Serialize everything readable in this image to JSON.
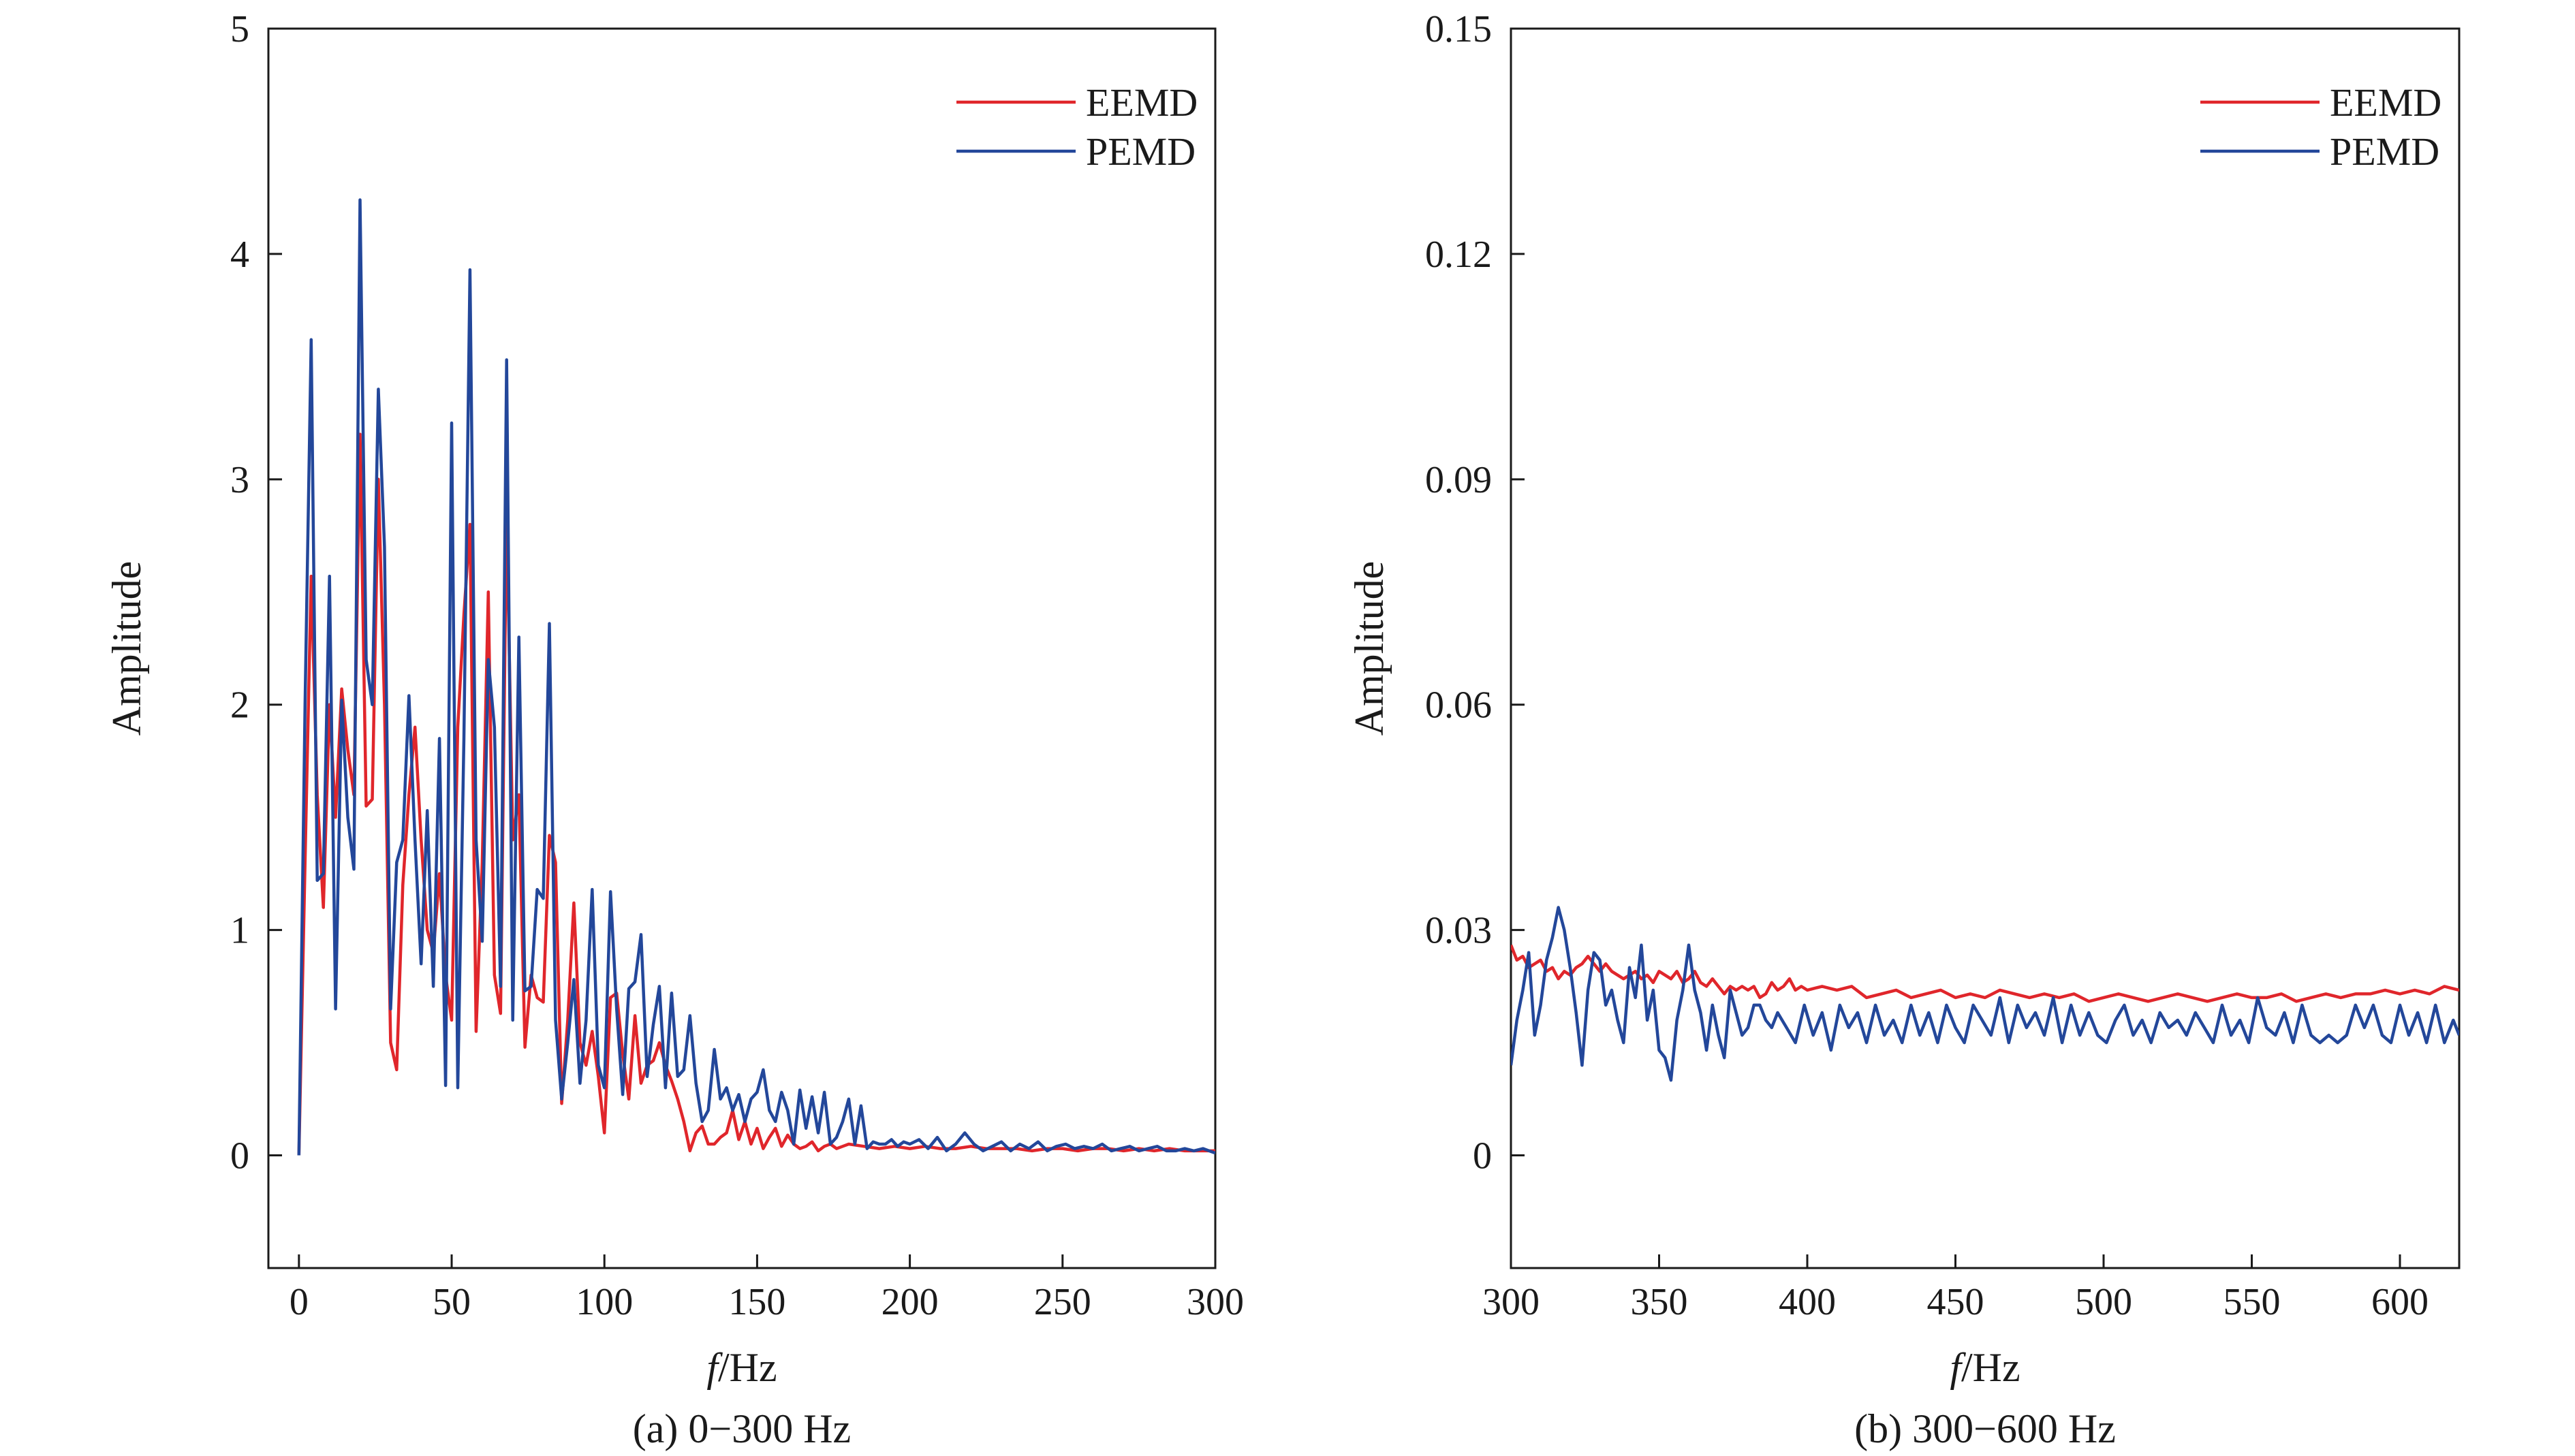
{
  "chart_data": [
    {
      "type": "line",
      "caption": "(a) 0−300 Hz",
      "xlabel_italic": "f",
      "xlabel_rest": "/Hz",
      "ylabel": "Amplitude",
      "xlim": [
        -10,
        300
      ],
      "ylim": [
        -0.5,
        5
      ],
      "xticks": [
        0,
        50,
        100,
        150,
        200,
        250,
        300
      ],
      "xtick_labels": [
        "0",
        "50",
        "100",
        "150",
        "200",
        "250",
        "300"
      ],
      "yticks": [
        0,
        1,
        2,
        3,
        4,
        5
      ],
      "ytick_labels": [
        "0",
        "1",
        "2",
        "3",
        "4",
        "5"
      ],
      "grid": false,
      "legend_position": "top-right",
      "series": [
        {
          "name": "EEMD",
          "color": "#e0262b",
          "x": [
            0,
            2,
            4,
            6,
            8,
            10,
            12,
            14,
            16,
            18,
            20,
            22,
            24,
            26,
            28,
            30,
            32,
            34,
            36,
            38,
            40,
            42,
            44,
            46,
            48,
            50,
            52,
            54,
            56,
            58,
            60,
            62,
            64,
            66,
            68,
            70,
            72,
            74,
            76,
            78,
            80,
            82,
            84,
            86,
            88,
            90,
            92,
            94,
            96,
            98,
            100,
            102,
            104,
            106,
            108,
            110,
            112,
            114,
            116,
            118,
            120,
            122,
            124,
            126,
            128,
            130,
            132,
            134,
            136,
            138,
            140,
            142,
            144,
            146,
            148,
            150,
            152,
            154,
            156,
            158,
            160,
            162,
            164,
            166,
            168,
            170,
            172,
            174,
            176,
            178,
            180,
            185,
            190,
            195,
            200,
            205,
            210,
            215,
            220,
            225,
            230,
            235,
            240,
            245,
            250,
            255,
            260,
            265,
            270,
            275,
            280,
            285,
            290,
            295,
            300
          ],
          "y": [
            0,
            1.3,
            2.57,
            1.6,
            1.1,
            2.0,
            1.5,
            2.07,
            1.8,
            1.6,
            3.2,
            1.55,
            1.58,
            3.0,
            2.0,
            0.5,
            0.38,
            1.2,
            1.6,
            1.9,
            1.4,
            1.0,
            0.9,
            1.25,
            0.8,
            0.6,
            1.9,
            2.4,
            2.8,
            0.55,
            1.3,
            2.5,
            0.8,
            0.63,
            2.87,
            1.4,
            1.6,
            0.48,
            0.8,
            0.7,
            0.68,
            1.42,
            1.3,
            0.23,
            0.6,
            1.12,
            0.5,
            0.4,
            0.55,
            0.35,
            0.1,
            0.7,
            0.72,
            0.45,
            0.25,
            0.62,
            0.32,
            0.4,
            0.42,
            0.5,
            0.4,
            0.33,
            0.25,
            0.15,
            0.02,
            0.1,
            0.13,
            0.05,
            0.05,
            0.08,
            0.1,
            0.2,
            0.07,
            0.15,
            0.05,
            0.12,
            0.03,
            0.08,
            0.12,
            0.04,
            0.09,
            0.05,
            0.03,
            0.04,
            0.06,
            0.02,
            0.04,
            0.05,
            0.03,
            0.04,
            0.05,
            0.04,
            0.03,
            0.04,
            0.03,
            0.04,
            0.03,
            0.03,
            0.04,
            0.03,
            0.03,
            0.03,
            0.02,
            0.03,
            0.03,
            0.02,
            0.03,
            0.03,
            0.02,
            0.03,
            0.02,
            0.03,
            0.02,
            0.02,
            0.02
          ]
        },
        {
          "name": "PEMD",
          "color": "#23479a",
          "x": [
            0,
            2,
            4,
            6,
            8,
            10,
            12,
            14,
            16,
            18,
            20,
            22,
            24,
            26,
            28,
            30,
            32,
            34,
            36,
            38,
            40,
            42,
            44,
            46,
            48,
            50,
            52,
            54,
            56,
            58,
            60,
            62,
            64,
            66,
            68,
            70,
            72,
            74,
            76,
            78,
            80,
            82,
            84,
            86,
            88,
            90,
            92,
            94,
            96,
            98,
            100,
            102,
            104,
            106,
            108,
            110,
            112,
            114,
            116,
            118,
            120,
            122,
            124,
            126,
            128,
            130,
            132,
            134,
            136,
            138,
            140,
            142,
            144,
            146,
            148,
            150,
            152,
            154,
            156,
            158,
            160,
            162,
            164,
            166,
            168,
            170,
            172,
            174,
            176,
            178,
            180,
            182,
            184,
            186,
            188,
            190,
            192,
            194,
            196,
            198,
            200,
            203,
            206,
            209,
            212,
            215,
            218,
            221,
            224,
            227,
            230,
            233,
            236,
            239,
            242,
            245,
            248,
            251,
            254,
            257,
            260,
            263,
            266,
            269,
            272,
            275,
            278,
            281,
            284,
            287,
            290,
            293,
            296,
            300
          ],
          "y": [
            0,
            2.0,
            3.62,
            1.22,
            1.25,
            2.57,
            0.65,
            2.02,
            1.5,
            1.27,
            4.24,
            2.2,
            2.0,
            3.4,
            2.7,
            0.65,
            1.3,
            1.4,
            2.04,
            1.4,
            0.85,
            1.53,
            0.75,
            1.85,
            0.31,
            3.25,
            0.3,
            1.85,
            3.93,
            1.4,
            0.95,
            2.2,
            1.9,
            0.75,
            3.53,
            0.6,
            2.3,
            0.73,
            0.75,
            1.18,
            1.14,
            2.36,
            0.6,
            0.25,
            0.5,
            0.78,
            0.32,
            0.6,
            1.18,
            0.4,
            0.3,
            1.17,
            0.65,
            0.27,
            0.74,
            0.77,
            0.98,
            0.35,
            0.58,
            0.75,
            0.3,
            0.72,
            0.35,
            0.38,
            0.62,
            0.32,
            0.15,
            0.2,
            0.47,
            0.25,
            0.3,
            0.2,
            0.27,
            0.15,
            0.25,
            0.28,
            0.38,
            0.2,
            0.15,
            0.28,
            0.2,
            0.05,
            0.29,
            0.12,
            0.26,
            0.1,
            0.28,
            0.05,
            0.08,
            0.15,
            0.25,
            0.05,
            0.22,
            0.03,
            0.06,
            0.05,
            0.05,
            0.07,
            0.04,
            0.06,
            0.05,
            0.07,
            0.03,
            0.08,
            0.02,
            0.05,
            0.1,
            0.05,
            0.02,
            0.04,
            0.06,
            0.02,
            0.05,
            0.03,
            0.06,
            0.02,
            0.04,
            0.05,
            0.03,
            0.04,
            0.03,
            0.05,
            0.02,
            0.03,
            0.04,
            0.02,
            0.03,
            0.04,
            0.02,
            0.02,
            0.03,
            0.02,
            0.03,
            0.01
          ]
        }
      ]
    },
    {
      "type": "line",
      "caption": "(b) 300−600 Hz",
      "xlabel_italic": "f",
      "xlabel_rest": "/Hz",
      "ylabel": "Amplitude",
      "xlim": [
        300,
        620
      ],
      "ylim": [
        -0.015,
        0.15
      ],
      "xticks": [
        300,
        350,
        400,
        450,
        500,
        550,
        600
      ],
      "xtick_labels": [
        "300",
        "350",
        "400",
        "450",
        "500",
        "550",
        "600"
      ],
      "yticks": [
        0,
        0.03,
        0.06,
        0.09,
        0.12,
        0.15
      ],
      "ytick_labels": [
        "0",
        "0.03",
        "0.06",
        "0.09",
        "0.12",
        "0.15"
      ],
      "grid": false,
      "legend_position": "top-right",
      "series": [
        {
          "name": "EEMD",
          "color": "#e0262b",
          "x": [
            300,
            302,
            304,
            306,
            308,
            310,
            312,
            314,
            316,
            318,
            320,
            322,
            324,
            326,
            328,
            330,
            332,
            334,
            336,
            338,
            340,
            342,
            344,
            346,
            348,
            350,
            352,
            354,
            356,
            358,
            360,
            362,
            364,
            366,
            368,
            370,
            372,
            374,
            376,
            378,
            380,
            382,
            384,
            386,
            388,
            390,
            392,
            394,
            396,
            398,
            400,
            405,
            410,
            415,
            420,
            425,
            430,
            435,
            440,
            445,
            450,
            455,
            460,
            465,
            470,
            475,
            480,
            485,
            490,
            495,
            500,
            505,
            510,
            515,
            520,
            525,
            530,
            535,
            540,
            545,
            550,
            555,
            560,
            565,
            570,
            575,
            580,
            585,
            590,
            595,
            600,
            605,
            610,
            615,
            620
          ],
          "y": [
            0.028,
            0.026,
            0.0265,
            0.025,
            0.0255,
            0.026,
            0.0245,
            0.025,
            0.0235,
            0.0245,
            0.024,
            0.025,
            0.0255,
            0.0265,
            0.0255,
            0.0245,
            0.0255,
            0.0245,
            0.024,
            0.0235,
            0.024,
            0.0245,
            0.0235,
            0.024,
            0.023,
            0.0245,
            0.024,
            0.0235,
            0.0245,
            0.023,
            0.0235,
            0.0245,
            0.023,
            0.0225,
            0.0235,
            0.0225,
            0.0215,
            0.0225,
            0.022,
            0.0225,
            0.022,
            0.0225,
            0.021,
            0.0215,
            0.023,
            0.022,
            0.0225,
            0.0235,
            0.022,
            0.0225,
            0.022,
            0.0225,
            0.022,
            0.0225,
            0.021,
            0.0215,
            0.022,
            0.021,
            0.0215,
            0.022,
            0.021,
            0.0215,
            0.021,
            0.022,
            0.0215,
            0.021,
            0.0215,
            0.021,
            0.0215,
            0.0205,
            0.021,
            0.0215,
            0.021,
            0.0205,
            0.021,
            0.0215,
            0.021,
            0.0205,
            0.021,
            0.0215,
            0.021,
            0.021,
            0.0215,
            0.0205,
            0.021,
            0.0215,
            0.021,
            0.0215,
            0.0215,
            0.022,
            0.0215,
            0.022,
            0.0215,
            0.0225,
            0.022
          ]
        },
        {
          "name": "PEMD",
          "color": "#23479a",
          "x": [
            300,
            302,
            304,
            306,
            308,
            310,
            312,
            314,
            316,
            318,
            320,
            322,
            324,
            326,
            328,
            330,
            332,
            334,
            336,
            338,
            340,
            342,
            344,
            346,
            348,
            350,
            352,
            354,
            356,
            358,
            360,
            362,
            364,
            366,
            368,
            370,
            372,
            374,
            376,
            378,
            380,
            382,
            384,
            386,
            388,
            390,
            393,
            396,
            399,
            402,
            405,
            408,
            411,
            414,
            417,
            420,
            423,
            426,
            429,
            432,
            435,
            438,
            441,
            444,
            447,
            450,
            453,
            456,
            459,
            462,
            465,
            468,
            471,
            474,
            477,
            480,
            483,
            486,
            489,
            492,
            495,
            498,
            501,
            504,
            507,
            510,
            513,
            516,
            519,
            522,
            525,
            528,
            531,
            534,
            537,
            540,
            543,
            546,
            549,
            552,
            555,
            558,
            561,
            564,
            567,
            570,
            573,
            576,
            579,
            582,
            585,
            588,
            591,
            594,
            597,
            600,
            603,
            606,
            609,
            612,
            615,
            618,
            620
          ],
          "y": [
            0.012,
            0.018,
            0.022,
            0.027,
            0.016,
            0.02,
            0.026,
            0.029,
            0.033,
            0.03,
            0.025,
            0.019,
            0.012,
            0.022,
            0.027,
            0.026,
            0.02,
            0.022,
            0.018,
            0.015,
            0.025,
            0.021,
            0.028,
            0.018,
            0.022,
            0.014,
            0.013,
            0.01,
            0.018,
            0.022,
            0.028,
            0.022,
            0.019,
            0.014,
            0.02,
            0.016,
            0.013,
            0.022,
            0.019,
            0.016,
            0.017,
            0.02,
            0.02,
            0.018,
            0.017,
            0.019,
            0.017,
            0.015,
            0.02,
            0.016,
            0.019,
            0.014,
            0.02,
            0.017,
            0.019,
            0.015,
            0.02,
            0.016,
            0.018,
            0.015,
            0.02,
            0.016,
            0.019,
            0.015,
            0.02,
            0.017,
            0.015,
            0.02,
            0.018,
            0.016,
            0.021,
            0.015,
            0.02,
            0.017,
            0.019,
            0.016,
            0.021,
            0.015,
            0.02,
            0.016,
            0.019,
            0.016,
            0.015,
            0.018,
            0.02,
            0.016,
            0.018,
            0.015,
            0.019,
            0.017,
            0.018,
            0.016,
            0.019,
            0.017,
            0.015,
            0.02,
            0.016,
            0.018,
            0.015,
            0.021,
            0.017,
            0.016,
            0.019,
            0.015,
            0.02,
            0.016,
            0.015,
            0.016,
            0.015,
            0.016,
            0.02,
            0.017,
            0.02,
            0.016,
            0.015,
            0.02,
            0.016,
            0.019,
            0.015,
            0.02,
            0.015,
            0.018,
            0.016
          ]
        }
      ]
    }
  ]
}
